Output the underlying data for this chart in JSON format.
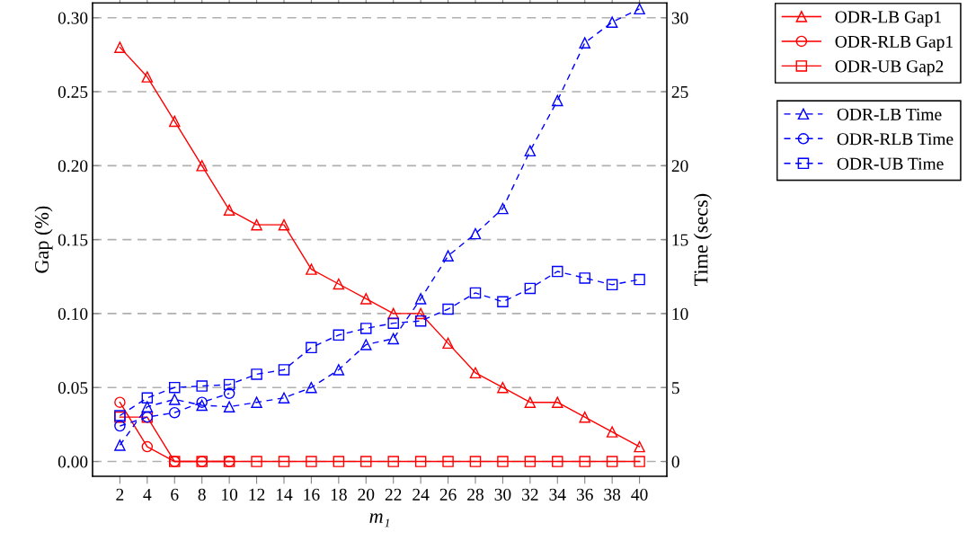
{
  "chart_data": {
    "type": "line",
    "xlabel": "m₁",
    "ylabel": "Gap (%)",
    "y2label": "Time (secs)",
    "x": [
      2,
      4,
      6,
      8,
      10,
      12,
      14,
      16,
      18,
      20,
      22,
      24,
      26,
      28,
      30,
      32,
      34,
      36,
      38,
      40
    ],
    "xlim": [
      0,
      42
    ],
    "xticks": [
      2,
      4,
      6,
      8,
      10,
      12,
      14,
      16,
      18,
      20,
      22,
      24,
      26,
      28,
      30,
      32,
      34,
      36,
      38,
      40
    ],
    "ylim": [
      -0.01,
      0.31
    ],
    "yticks": [
      {
        "value": 0,
        "label": "0.00"
      },
      {
        "value": 0.05,
        "label": "0.05"
      },
      {
        "value": 0.1,
        "label": "0.10"
      },
      {
        "value": 0.15,
        "label": "0.15"
      },
      {
        "value": 0.2,
        "label": "0.20"
      },
      {
        "value": 0.25,
        "label": "0.25"
      },
      {
        "value": 0.3,
        "label": "0.30"
      }
    ],
    "y2lim": [
      -1,
      31
    ],
    "y2ticks": [
      0,
      5,
      10,
      15,
      20,
      25,
      30
    ],
    "grid": "y",
    "legend": "top right",
    "series": [
      {
        "name": "ODR-LB Gap1",
        "color": "#ff0000",
        "marker": "triangle",
        "line_style": "solid",
        "values": [
          0.28,
          0.26,
          0.23,
          0.2,
          0.17,
          0.16,
          0.16,
          0.13,
          0.12,
          0.11,
          0.1,
          0.1,
          0.08,
          0.06,
          0.05,
          0.04,
          0.04,
          0.03,
          0.02,
          0.01
        ]
      },
      {
        "name": "ODR-RLB Gap1",
        "color": "#ff0000",
        "marker": "circle",
        "line_style": "solid",
        "values": [
          0.04,
          0.01,
          0,
          0,
          0,
          null,
          null,
          null,
          null,
          null,
          null,
          null,
          null,
          null,
          null,
          null,
          null,
          null,
          null,
          null
        ]
      },
      {
        "name": "ODR-UB Gap2",
        "color": "#ff0000",
        "marker": "square",
        "line_style": "solid",
        "values": [
          0.03,
          0.03,
          0,
          0,
          0,
          0,
          0,
          0,
          0,
          0,
          0,
          0,
          0,
          0,
          0,
          0,
          0,
          0,
          0,
          0
        ]
      },
      {
        "name": "ODR-LB Time",
        "color": "#0000ff",
        "marker": "triangle",
        "line_style": "dashed",
        "axis": "y2",
        "values": [
          1.1,
          3.7,
          4.2,
          3.8,
          3.7,
          4.0,
          4.3,
          5.0,
          6.2,
          7.9,
          8.3,
          11.0,
          13.9,
          15.4,
          17.1,
          21.0,
          24.4,
          28.3,
          29.7,
          30.6
        ]
      },
      {
        "name": "ODR-RLB Time",
        "color": "#0000ff",
        "marker": "circle",
        "line_style": "dashed",
        "axis": "y2",
        "values": [
          2.4,
          3.0,
          3.3,
          4.0,
          4.6,
          null,
          null,
          null,
          null,
          null,
          null,
          null,
          null,
          null,
          null,
          null,
          null,
          null,
          null,
          null
        ]
      },
      {
        "name": "ODR-UB Time",
        "color": "#0000ff",
        "marker": "square",
        "line_style": "dashed",
        "axis": "y2",
        "values": [
          3.1,
          4.3,
          5.0,
          5.1,
          5.2,
          5.9,
          6.2,
          7.7,
          8.55,
          9.0,
          9.35,
          9.5,
          10.3,
          11.4,
          10.8,
          11.7,
          12.85,
          12.4,
          11.95,
          12.3
        ]
      }
    ]
  }
}
